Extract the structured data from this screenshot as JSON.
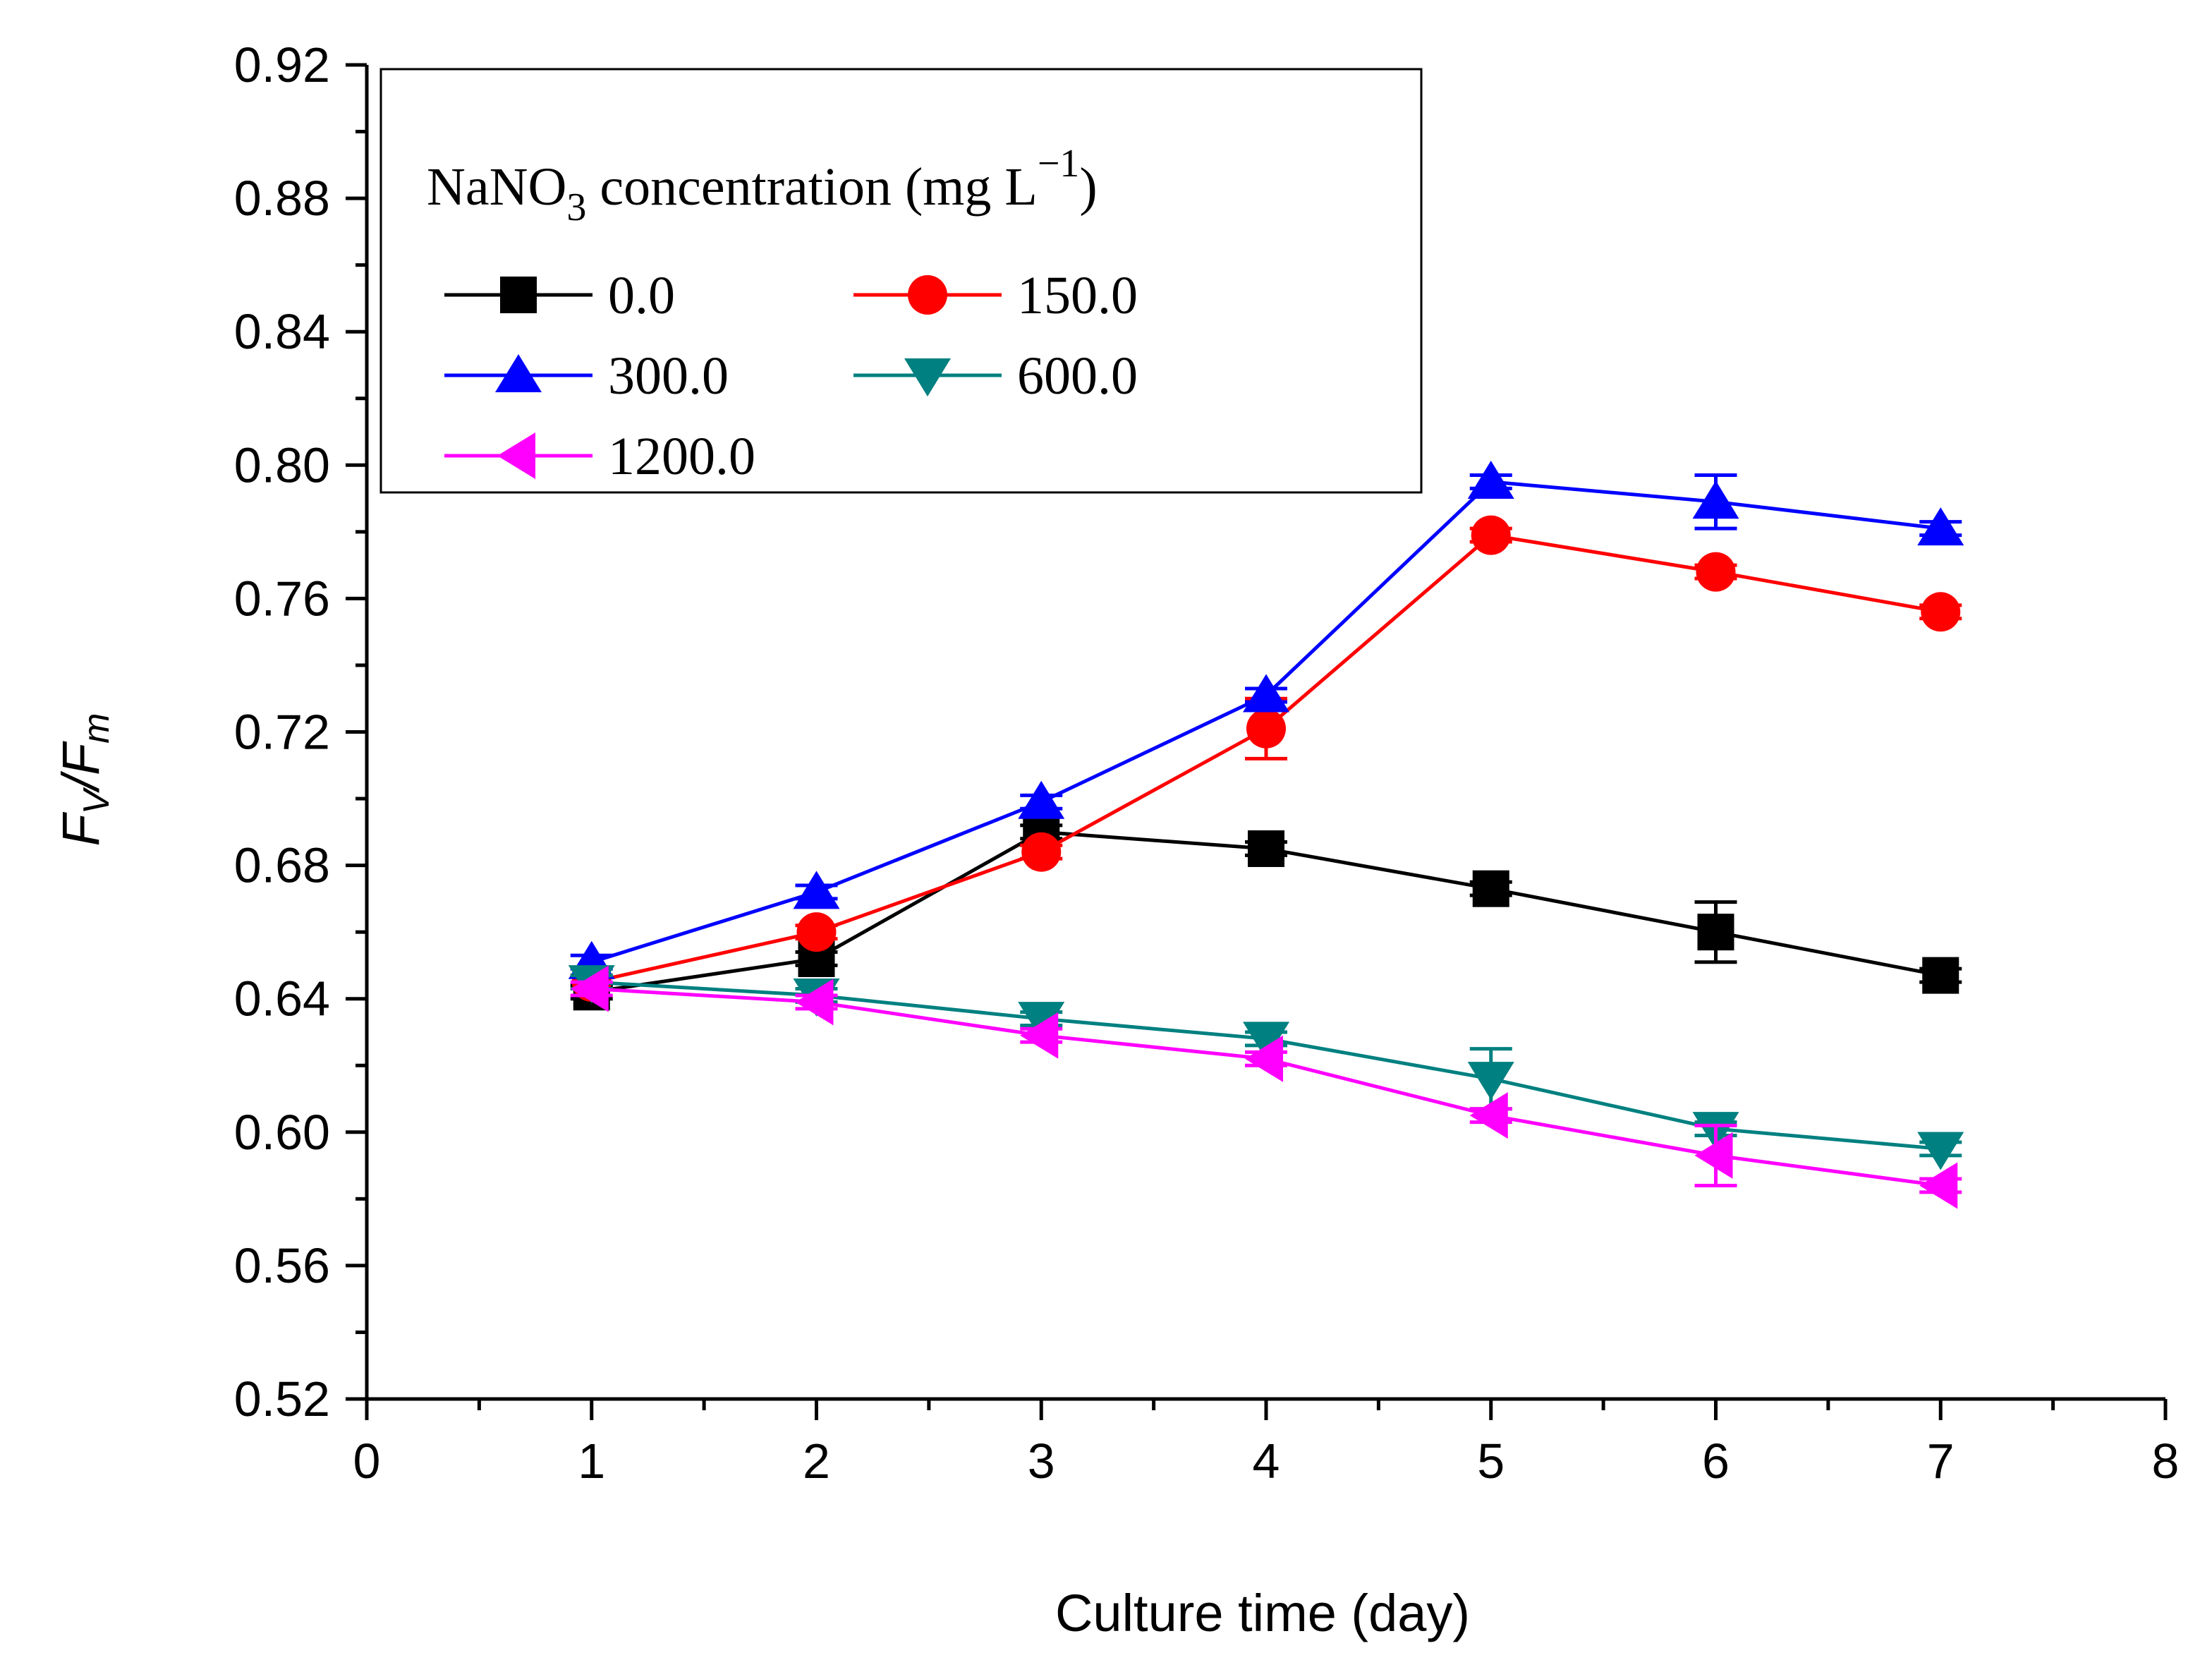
{
  "chart_data": {
    "type": "line",
    "title": "",
    "xlabel": "Culture time (day)",
    "ylabel": {
      "main1": "F",
      "sub1": "V",
      "sep": "/",
      "main2": "F",
      "sub2": "m"
    },
    "xlim": [
      0,
      8
    ],
    "ylim": [
      0.52,
      0.92
    ],
    "x_ticks": [
      0,
      1,
      2,
      3,
      4,
      5,
      6,
      7,
      8
    ],
    "y_ticks": [
      0.52,
      0.56,
      0.6,
      0.64,
      0.68,
      0.72,
      0.76,
      0.8,
      0.84,
      0.88,
      0.92
    ],
    "x_tick_labels": [
      "0",
      "1",
      "2",
      "3",
      "4",
      "5",
      "6",
      "7",
      "8"
    ],
    "y_tick_labels": [
      "0.52",
      "0.56",
      "0.60",
      "0.64",
      "0.68",
      "0.72",
      "0.76",
      "0.80",
      "0.84",
      "0.88",
      "0.92"
    ],
    "grid": false,
    "legend": {
      "placement": "top-left",
      "title_prefix": "NaNO",
      "title_sub": "3",
      "title_mid": " concentration (mg L",
      "title_sup": "−1",
      "title_end": ")"
    },
    "x": [
      1,
      2,
      3,
      4,
      5,
      6,
      7
    ],
    "series": [
      {
        "name": "0.0",
        "color": "#000000",
        "marker": "square",
        "values": [
          0.642,
          0.652,
          0.69,
          0.685,
          0.673,
          0.66,
          0.647
        ],
        "errors": [
          0.002,
          0.002,
          0.002,
          0.002,
          0.002,
          0.009,
          0.002
        ]
      },
      {
        "name": "150.0",
        "color": "#ff0000",
        "marker": "circle",
        "values": [
          0.645,
          0.66,
          0.684,
          0.721,
          0.779,
          0.768,
          0.756
        ],
        "errors": [
          0.002,
          0.002,
          0.002,
          0.009,
          0.002,
          0.002,
          0.002
        ]
      },
      {
        "name": "300.0",
        "color": "#0000ff",
        "marker": "triangle-up",
        "values": [
          0.651,
          0.672,
          0.699,
          0.731,
          0.795,
          0.789,
          0.781
        ],
        "errors": [
          0.002,
          0.002,
          0.002,
          0.002,
          0.002,
          0.008,
          0.002
        ]
      },
      {
        "name": "600.0",
        "color": "#008080",
        "marker": "triangle-down",
        "values": [
          0.645,
          0.641,
          0.634,
          0.628,
          0.616,
          0.601,
          0.595
        ],
        "errors": [
          0.002,
          0.002,
          0.002,
          0.002,
          0.009,
          0.002,
          0.002
        ]
      },
      {
        "name": "1200.0",
        "color": "#ff00ff",
        "marker": "triangle-left",
        "values": [
          0.643,
          0.639,
          0.629,
          0.622,
          0.605,
          0.593,
          0.584
        ],
        "errors": [
          0.002,
          0.002,
          0.002,
          0.002,
          0.002,
          0.009,
          0.002
        ]
      }
    ]
  }
}
